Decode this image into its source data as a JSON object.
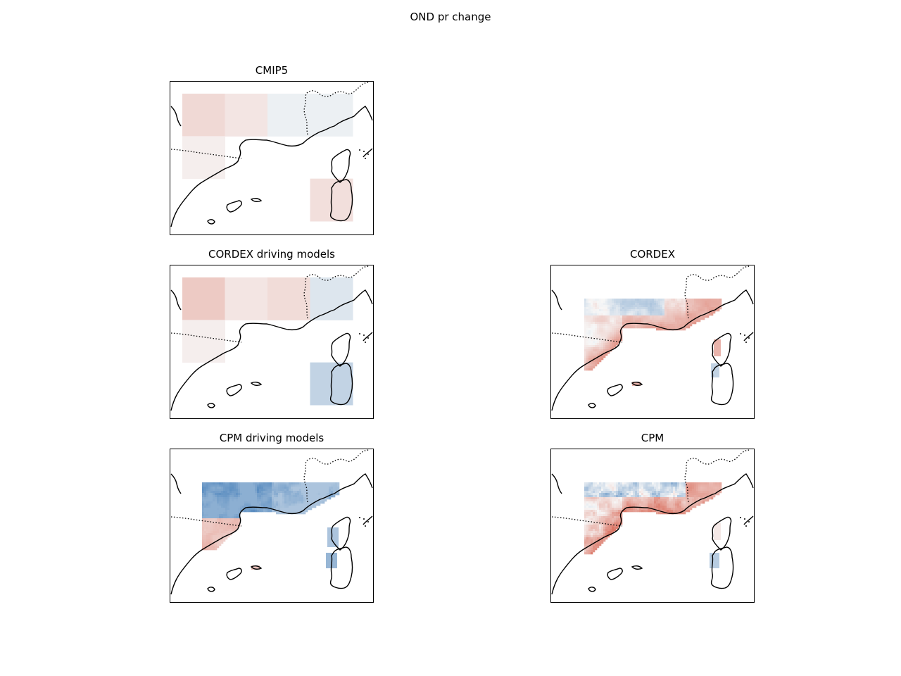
{
  "figure": {
    "suptitle": "OND pr change"
  },
  "panels": [
    {
      "id": "cmip5",
      "title": "CMIP5",
      "field": "coarse",
      "cells": [
        [
          0.2,
          0.12,
          -0.05,
          -0.05
        ],
        [
          0.06,
          null,
          null,
          null
        ],
        [
          null,
          null,
          null,
          0.16
        ]
      ]
    },
    {
      "id": "cordex-driving",
      "title": "CORDEX driving models",
      "field": "coarse",
      "cells": [
        [
          0.3,
          0.12,
          0.18,
          -0.12
        ],
        [
          0.06,
          null,
          null,
          null
        ],
        [
          null,
          null,
          null,
          -0.25
        ]
      ]
    },
    {
      "id": "cordex",
      "title": "CORDEX",
      "field": "fine-mixed"
    },
    {
      "id": "cpm-driving",
      "title": "CPM driving models",
      "field": "fine-blue"
    },
    {
      "id": "cpm",
      "title": "CPM",
      "field": "fine-mixed-strong"
    }
  ],
  "colormap": {
    "name": "RdBu_r",
    "negative": "#2166ac",
    "neutral": "#f7f7f7",
    "positive": "#d6604d"
  }
}
